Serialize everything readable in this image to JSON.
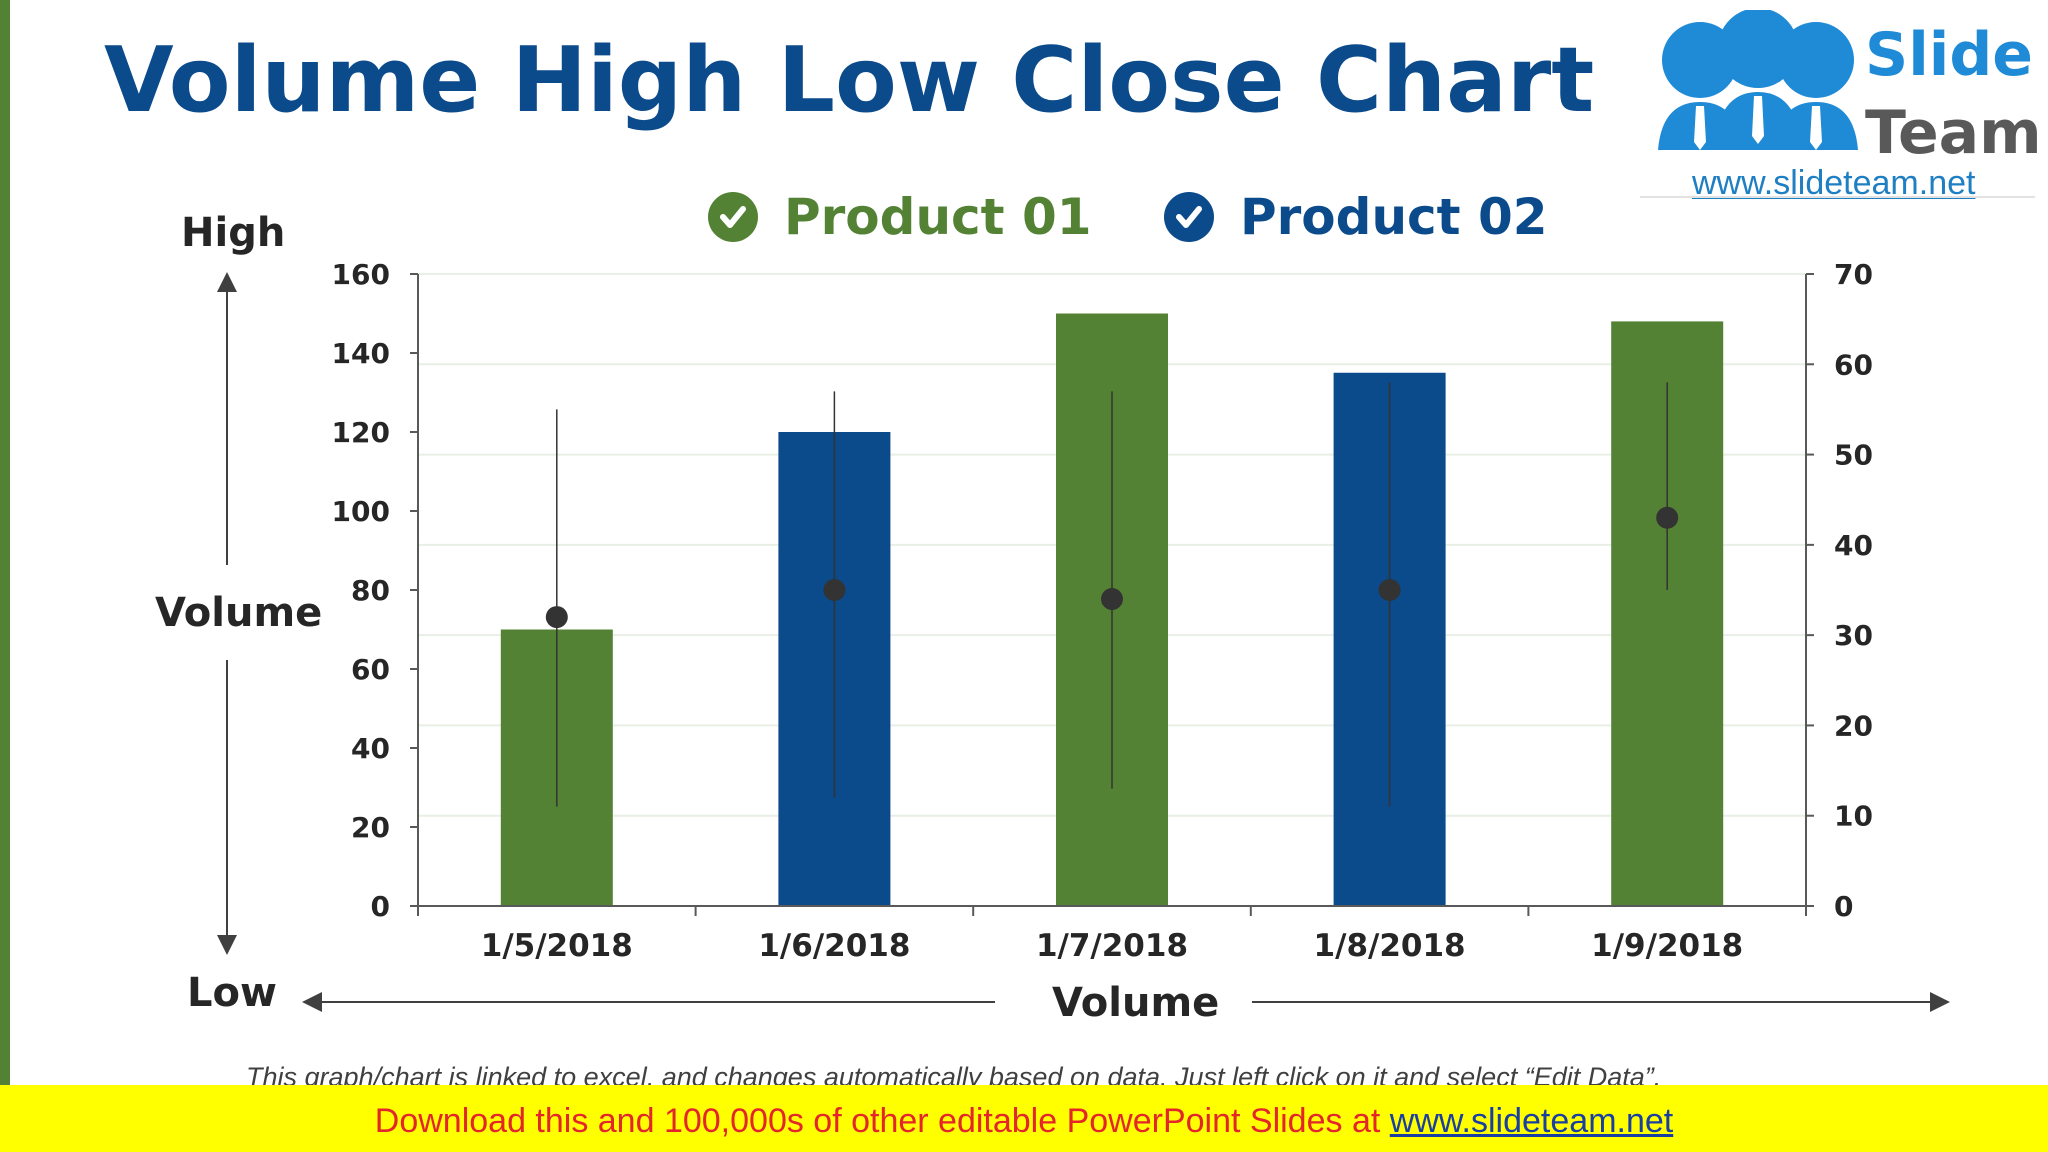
{
  "slide": {
    "title": "Volume High Low Close Chart",
    "footnote": "This graph/chart is linked to excel, and changes automatically based on data. Just left click on it and select “Edit Data”."
  },
  "logo": {
    "word1": "Slide",
    "word2": "Team",
    "url": "www.slideteam.net",
    "colors": {
      "blue": "#1f8bd6",
      "gray": "#595959"
    }
  },
  "banner": {
    "text": "Download this and 100,000s of other editable PowerPoint Slides at ",
    "link": "www.slideteam.net"
  },
  "side_labels": {
    "high": "High",
    "low": "Low",
    "volume_left": "Volume",
    "volume_bottom": "Volume"
  },
  "legend": [
    {
      "label": "Product 01",
      "color": "#548235",
      "icon": "check-circle-icon"
    },
    {
      "label": "Product 02",
      "color": "#0B4A8B",
      "icon": "check-circle-icon"
    }
  ],
  "chart_data": {
    "type": "bar",
    "categories": [
      "1/5/2018",
      "1/6/2018",
      "1/7/2018",
      "1/8/2018",
      "1/9/2018"
    ],
    "volume": [
      70,
      120,
      150,
      135,
      148
    ],
    "bar_colors": [
      "#548235",
      "#0B4A8B",
      "#548235",
      "#0B4A8B",
      "#548235"
    ],
    "high": [
      55,
      57,
      57,
      58,
      58
    ],
    "low": [
      11,
      12,
      13,
      11,
      35
    ],
    "close": [
      32,
      35,
      34,
      35,
      43
    ],
    "y_left": {
      "min": 0,
      "max": 160,
      "ticks": [
        "0",
        "20",
        "40",
        "60",
        "80",
        "100",
        "120",
        "140",
        "160"
      ]
    },
    "y_right": {
      "min": 0,
      "max": 70,
      "ticks": [
        "0",
        "10",
        "20",
        "30",
        "40",
        "50",
        "60",
        "70"
      ]
    },
    "grid": true,
    "legend_position": "top"
  }
}
